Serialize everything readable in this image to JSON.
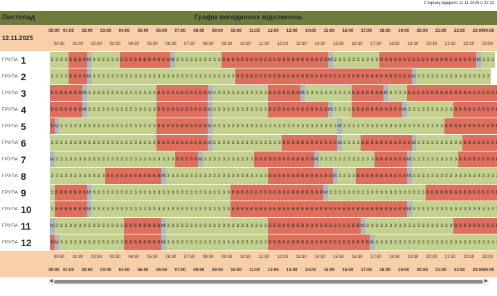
{
  "page": {
    "stamp": "Сторінку відкрито 11.11.2025 о 22:22",
    "month": "Листопад",
    "title": "Графік погодинних відключень",
    "date": "12.11.2025",
    "group_label": "ГРУПА"
  },
  "colors": {
    "on": "#c4d18e",
    "off": "#df6f5d",
    "maybe": "#aab8c0",
    "header_bg": "#f8cfa8",
    "titlebar": "#6f7b3e"
  },
  "legend_codes": {
    "З": "power on",
    "В": "power off",
    "МЗ": "possible on"
  },
  "hours": [
    "00:00",
    "01:00",
    "02:00",
    "03:00",
    "04:00",
    "05:00",
    "06:00",
    "07:00",
    "08:00",
    "09:00",
    "10:00",
    "11:00",
    "12:00",
    "13:00",
    "14:00",
    "15:00",
    "16:00",
    "17:00",
    "18:00",
    "19:00",
    "20:00",
    "21:00",
    "22:00",
    "23:00",
    "00:00"
  ],
  "half_hours": [
    "00:30",
    "01:30",
    "02:30",
    "03:30",
    "04:30",
    "05:30",
    "06:30",
    "07:30",
    "08:30",
    "09:30",
    "10:30",
    "11:30",
    "12:30",
    "13:30",
    "14:30",
    "15:30",
    "16:30",
    "17:30",
    "18:30",
    "19:30",
    "20:30",
    "21:30",
    "22:30",
    "23:30"
  ],
  "groups": [
    {
      "label": "ГРУПА",
      "number": "1",
      "slots": "ZZZZVVVVMZZZZZZVVVVVVVVVVVMZZZZZZZZZZVVVVVVVVVVVVVVVVVVVVVVVMZZZZZZZZZZVVVVVVVVVVVVVVVVVVVVVMZZZ"
    },
    {
      "label": "ГРУПА",
      "number": "2",
      "slots": "ZZZZVVVVMZZZZZZZZZZZZZZZZZZZZZZZZZZZZZZZVVVVVVVVVVVVVVVVVVVVVVVVVVVVVVVVVVVVVVMZZZZZZZZZZZZZZZZ"
    },
    {
      "label": "ГРУПА",
      "number": "3",
      "slots": "VVVVVVVMZZZZZZZZZZZZZZZVVVVVVVVVVVMZZZZZZZZZZZZVVVVVVVMZZZZZZZZZZVVVVVVVMZZZZVVVVVVVVVVVVVVVVVVVV"
    },
    {
      "label": "ГРУПА",
      "number": "4",
      "slots": "VVVVVVVMZZZZZZZZZZZZZZZVVVVVVVVVVVMZZZZZZZZZZZZVVVVVVVVVVVVVMZZZZVVVVVVVVVVVMZZZZZZZZZZVVVVVVVVVVVV"
    },
    {
      "label": "ГРУПА",
      "number": "5",
      "slots": "VMZZZZZZZZZZZZZZZZZZZZZVVVVVVVVVVVMZZZZZZZZZZZZZZZZZZZZZZZZZZZMZZZZZZZZZZZZZZZZZZZZZZVVVVVVVVVVVVVV"
    },
    {
      "label": "ГРУПА",
      "number": "6",
      "slots": "ZZZZZZZZZZZZZZZZZZZZZZZVVVVVVVVVVVMZZZZZZZZZZZZZZZVVVVVVVVVVVVMZZZZVVVVVVVVVVVMZZZZZZZZZZVVVVVVVVVVV"
    },
    {
      "label": "ГРУПА",
      "number": "7",
      "slots": "MZZZZZZZZZZZZZZZZZZZZZZZZZZVVVVVMZZZZZZZZZZZVVVVVVVVVVVVVMZZZZZZZZZZZZVVVVVVVMZZZZZZZZZZVVVVVVVVVVV"
    },
    {
      "label": "ГРУПА",
      "number": "8",
      "slots": "ZZZZZZZZZZZZVVVVVVVVVVVVMZZZZZZZZZZZZZZZZZZZZZZVVVVVVVVVVVVVVMZZZZVVVVVVVVVVVMZZZZZZZZZZZZZZZZZZZZZ"
    },
    {
      "label": "ГРУПА",
      "number": "9",
      "slots": "ZVVVVVVVMZZZZZZZZZZZZZZZZZZZZZZZZZZZZZZVVVVVVVVVVVVVVVVVVVVMZZZZZZZZZZZZZZZZZZZZZVVVVVVVVVVVVVVVVV"
    },
    {
      "label": "ГРУПА",
      "number": "10",
      "slots": "ZVVVVVVVMZZZZZZZZZZZZZZZZZZZZZZZZZZZZZZVVVVVVVVVVVVVVVVVVVVVVVVVVVVVVVVVVVVVVMZZZZZZZZZZZZZZZZZZZ"
    },
    {
      "label": "ГРУПА",
      "number": "11",
      "slots": "MZZZZZZZZZZZZZZZVVVVVVVVMZZZZZZZZZZZZZZZZZZZZZZVVVVVVVVVVVVVVVVVVVVMZZZZZZZZZZZZZZZZZZZVVVVVVVVVVV"
    },
    {
      "label": "ГРУПА",
      "number": "12",
      "slots": "VMZZZZZZZZZZZZZZVVVVVVVVMZZZZZZZZZZZZZZZZZZZZZZVVVVVVVVVVVVVVVVVVVVVVMZZZZZZZZZZZZZZZZZZZZZZZZZZZZ"
    }
  ]
}
